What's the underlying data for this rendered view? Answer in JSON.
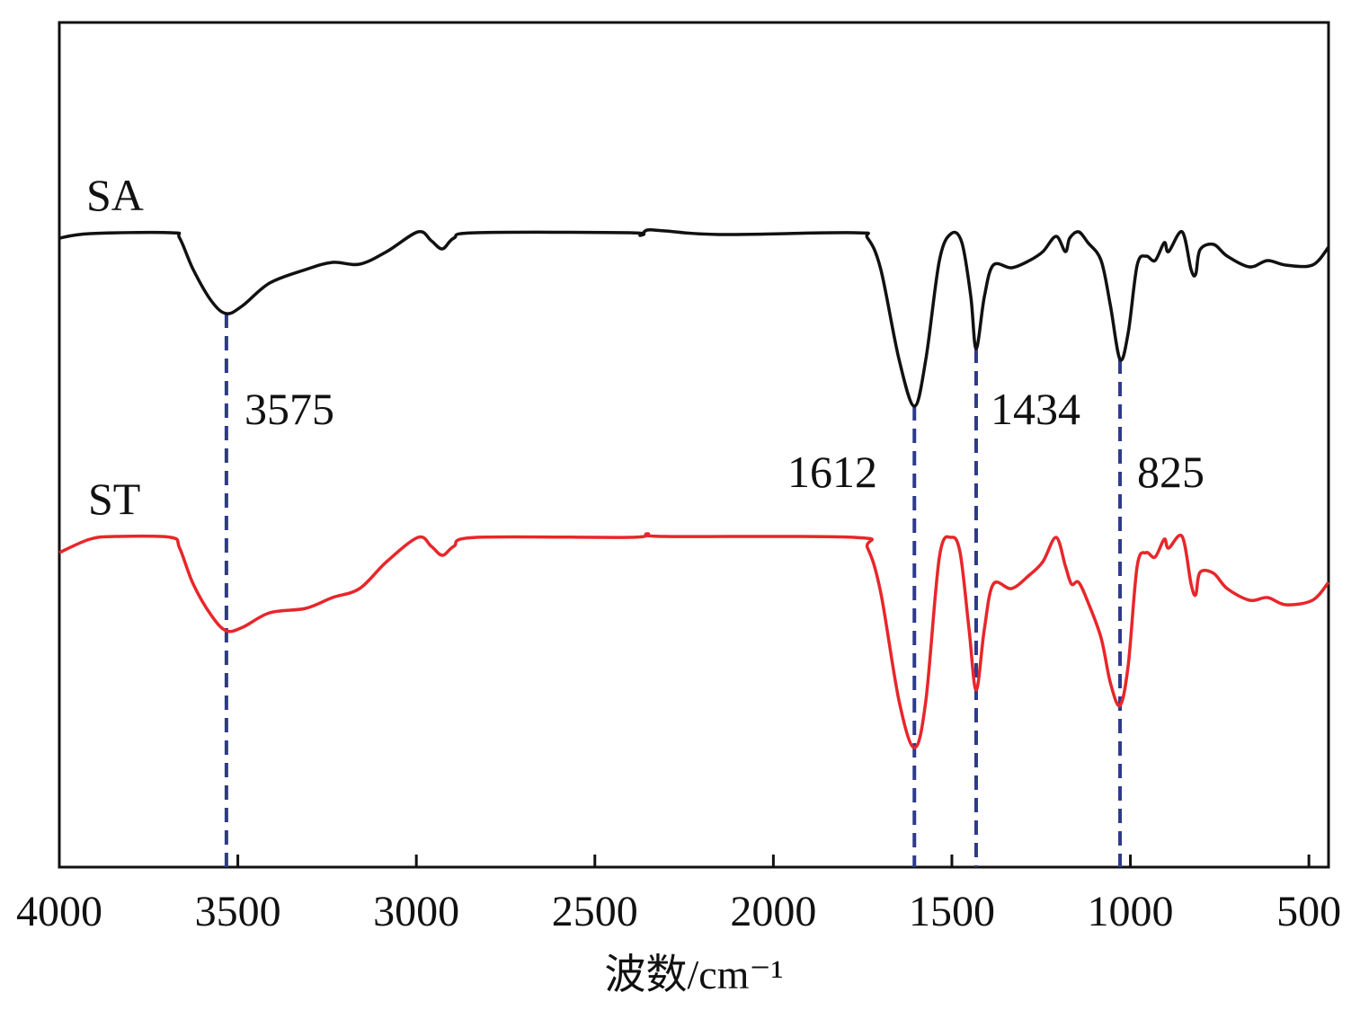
{
  "chart_data": {
    "type": "line",
    "title": "",
    "xlabel": "波数/cm⁻¹",
    "ylabel": "",
    "xlim": [
      4000,
      445
    ],
    "ylim": [
      0,
      940
    ],
    "x_reversed": true,
    "grid": false,
    "x_ticks": [
      4000,
      3500,
      3000,
      2500,
      2000,
      1500,
      1000,
      500
    ],
    "x_tick_labels": [
      "4000",
      "3500",
      "3000",
      "2500",
      "2000",
      "1500",
      "1000",
      "500"
    ],
    "series": [
      {
        "name": "SA",
        "color": "#111111",
        "x": [
          4000,
          3914,
          3688,
          3663,
          3625,
          3574,
          3532,
          3486,
          3411,
          3310,
          3235,
          3159,
          3083,
          2995,
          2958,
          2927,
          2895,
          2832,
          2404,
          2373,
          2353,
          2303,
          2152,
          1774,
          1736,
          1699,
          1648,
          1605,
          1573,
          1535,
          1502,
          1472,
          1447,
          1432,
          1409,
          1384,
          1333,
          1283,
          1245,
          1208,
          1182,
          1170,
          1145,
          1119,
          1082,
          1056,
          1029,
          1006,
          981,
          956,
          931,
          905,
          893,
          855,
          830,
          817,
          805,
          767,
          729,
          666,
          616,
          565,
          490,
          445
        ],
        "y": [
          700,
          705,
          706,
          700,
          665,
          630,
          616,
          625,
          650,
          665,
          673,
          671,
          685,
          707,
          697,
          688,
          700,
          706,
          706,
          703,
          709,
          708,
          704,
          706,
          700,
          665,
          565,
          513,
          565,
          675,
          705,
          695,
          635,
          577,
          635,
          670,
          667,
          675,
          685,
          702,
          685,
          700,
          707,
          695,
          675,
          625,
          565,
          595,
          670,
          680,
          675,
          695,
          685,
          707,
          665,
          660,
          687,
          693,
          680,
          668,
          675,
          670,
          670,
          690
        ]
      },
      {
        "name": "ST",
        "color": "#e8262a",
        "x": [
          4000,
          3914,
          3839,
          3688,
          3663,
          3625,
          3574,
          3532,
          3486,
          3411,
          3310,
          3235,
          3159,
          3083,
          2995,
          2958,
          2927,
          2895,
          2832,
          2404,
          2353,
          2303,
          1774,
          1736,
          1699,
          1648,
          1605,
          1573,
          1535,
          1502,
          1477,
          1452,
          1432,
          1409,
          1384,
          1333,
          1283,
          1245,
          1208,
          1182,
          1165,
          1145,
          1119,
          1082,
          1056,
          1029,
          1006,
          981,
          956,
          931,
          905,
          893,
          855,
          830,
          817,
          805,
          767,
          729,
          666,
          616,
          565,
          490,
          445
        ],
        "y": [
          350,
          365,
          368,
          367,
          355,
          315,
          280,
          263,
          267,
          283,
          288,
          300,
          310,
          340,
          367,
          357,
          347,
          357,
          367,
          367,
          371,
          368,
          367,
          355,
          305,
          185,
          133,
          185,
          345,
          367,
          350,
          265,
          197,
          265,
          315,
          310,
          325,
          340,
          367,
          335,
          315,
          317,
          295,
          255,
          205,
          180,
          225,
          335,
          350,
          345,
          365,
          355,
          368,
          315,
          303,
          328,
          327,
          310,
          297,
          300,
          292,
          297,
          317
        ]
      }
    ],
    "series_labels": [
      "SA",
      "ST"
    ],
    "peak_markers": {
      "color": "#2e3a8c",
      "positions": [
        3532,
        1605,
        1432,
        1029
      ],
      "labels": [
        "3575",
        "1612",
        "1434",
        "825"
      ]
    }
  }
}
